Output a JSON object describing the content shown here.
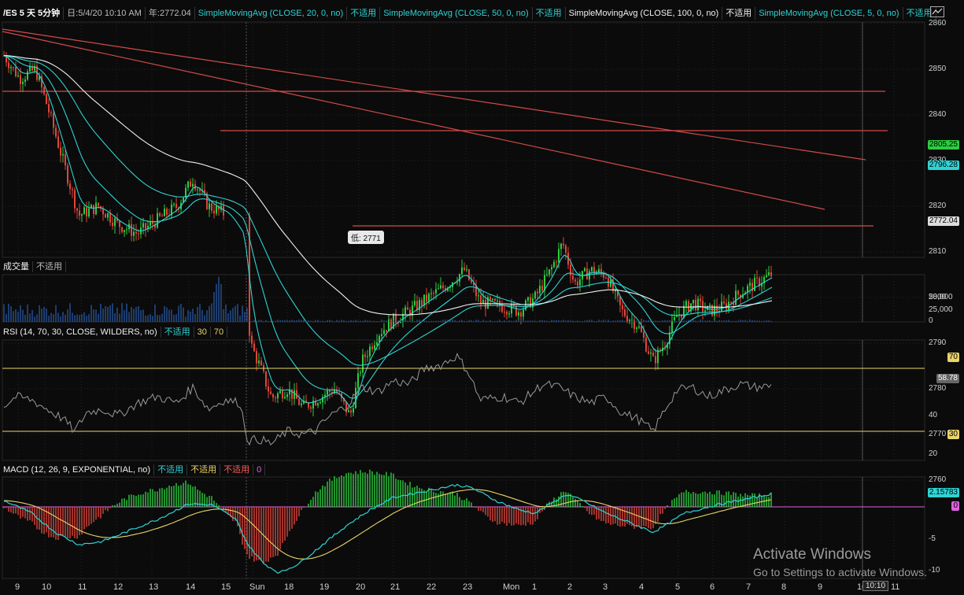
{
  "header": {
    "symbol": "/ES 5 天 5分钟",
    "day": "日:5/4/20 10:10 AM",
    "year": "年:2772.04",
    "studies": [
      {
        "label": "SimpleMovingAvg (CLOSE, 20, 0, no)",
        "status": "不适用",
        "color": "#2fd3d3"
      },
      {
        "label": "SimpleMovingAvg (CLOSE, 50, 0, no)",
        "status": "不适用",
        "color": "#2fd3d3"
      },
      {
        "label": "SimpleMovingAvg (CLOSE, 100, 0, no)",
        "status": "不适用",
        "color": "#f0f0f0"
      },
      {
        "label": "SimpleMovingAvg (CLOSE, 5, 0, no)",
        "status": "不适用",
        "color": "#2fd3d3"
      }
    ]
  },
  "price_axis": [
    "2860",
    "2850",
    "2840",
    "2830",
    "2820",
    "2810",
    "2800",
    "2790",
    "2780",
    "2770",
    "2760"
  ],
  "price_tags": {
    "last": "2805.25",
    "sma": "2796.28",
    "low_level": "2772.04"
  },
  "low_label": "低: 2771",
  "volume": {
    "title": "成交量",
    "status": "不适用",
    "axis": [
      "50,000",
      "25,000",
      "0"
    ]
  },
  "rsi": {
    "title": "RSI (14, 70, 30, CLOSE, WILDERS, no)",
    "status": "不适用",
    "ob": "30",
    "os": "70",
    "axis": [
      "40",
      "20"
    ],
    "tag_70": "70",
    "tag_30": "30",
    "last": "58.78"
  },
  "macd": {
    "title": "MACD (12, 26, 9, EXPONENTIAL, no)",
    "s1": "不适用",
    "s2": "不适用",
    "s3": "不适用",
    "zero": "0",
    "axis": [
      "-5",
      "-10"
    ],
    "last": "2.15783",
    "tag0": "0"
  },
  "x_axis": [
    "9",
    "10",
    "11",
    "12",
    "13",
    "14",
    "15",
    "Sun",
    "18",
    "19",
    "20",
    "21",
    "22",
    "23",
    "Mon",
    "1",
    "2",
    "3",
    "4",
    "5",
    "6",
    "7",
    "8",
    "9",
    "10",
    "11"
  ],
  "time_box": "10:10",
  "watermark": {
    "line1": "Activate Windows",
    "line2": "Go to Settings to activate Windows."
  },
  "colors": {
    "bull": "#2ecc40",
    "bear": "#e0453a",
    "sma20": "#2fd3d3",
    "sma100": "#f0f0f0",
    "trend": "#d24a4a",
    "rsi": "#9a9a9a",
    "macd": "#2fd3d3",
    "signal": "#e8d46a"
  }
}
